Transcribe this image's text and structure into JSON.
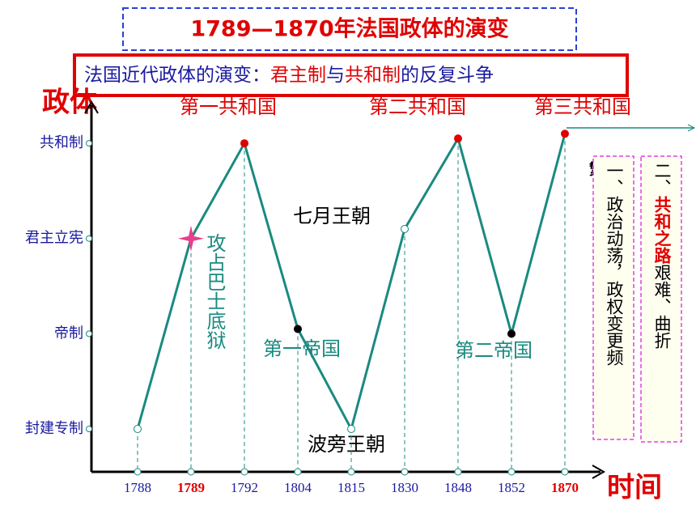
{
  "header": {
    "title": "1789—1870年法国政体的演变",
    "subtitle": [
      {
        "text": "法国近代政体的演变：",
        "color": "#1a1aa0"
      },
      {
        "text": "君主制",
        "color": "#e00000"
      },
      {
        "text": "与",
        "color": "#1a1aa0"
      },
      {
        "text": "共和制",
        "color": "#e00000"
      },
      {
        "text": "的反复斗争",
        "color": "#1a1aa0"
      }
    ]
  },
  "chart_data": {
    "type": "line",
    "y_title": "政体",
    "x_title": "时间",
    "categories": [
      "1788",
      "1789",
      "1792",
      "1804",
      "1815",
      "1830",
      "1848",
      "1852",
      "1870"
    ],
    "highlighted_categories": [
      1,
      8
    ],
    "values": [
      0,
      2,
      3,
      1.05,
      0,
      2.1,
      3.05,
      1,
      3.1
    ],
    "color": "#1a8a80",
    "marker_colors": [
      "#ffffff",
      "#e8408c",
      "#e00000",
      "#000000",
      "#ffffff",
      "#ffffff",
      "#e00000",
      "#000000",
      "#e00000"
    ],
    "star_markers": [
      1
    ],
    "ylim": [
      -0.45,
      3.4
    ],
    "yticks": [
      {
        "value": 0,
        "label": "封建专制"
      },
      {
        "value": 1,
        "label": "帝制"
      },
      {
        "value": 2,
        "label": "君主立宪"
      },
      {
        "value": 3,
        "label": "共和制"
      }
    ],
    "annotations": [
      "第一共和国",
      "第二共和国",
      "第三共和国",
      "七月王朝",
      "第一帝国",
      "第二帝国",
      "波旁王朝",
      "攻占巴士底狱"
    ]
  },
  "side": {
    "small": "繁",
    "box1": "一、政治动荡，政权变更频",
    "box2_bold": "共和之路",
    "box2_num": "二、",
    "box2_rest": "艰难、曲折"
  }
}
